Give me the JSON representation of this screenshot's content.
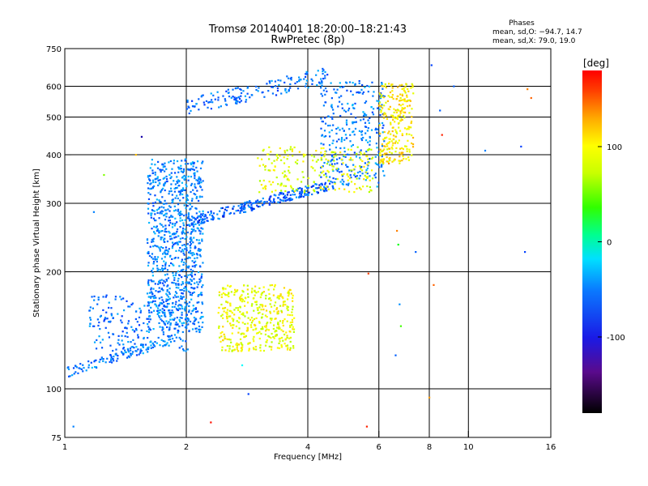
{
  "chart_data": {
    "type": "scatter",
    "title": "Tromsø 20140401 18:20:00–18:21:43",
    "subtitle": "RwPretec (8p)",
    "xlabel": "Frequency [MHz]",
    "ylabel": "Stationary phase Virtual Height [km]",
    "x_scale": "log",
    "y_scale": "log",
    "xlim": [
      1,
      16
    ],
    "ylim": [
      75,
      750
    ],
    "x_ticks": [
      1,
      2,
      4,
      6,
      8,
      10,
      16
    ],
    "y_ticks": [
      75,
      100,
      200,
      300,
      400,
      500,
      600,
      750
    ],
    "x_gridlines": [
      2,
      4,
      6,
      8,
      10
    ],
    "y_gridlines": [
      100,
      200,
      300,
      400,
      500,
      600
    ],
    "grid": true,
    "stats": {
      "header": "Phases",
      "line_o": "mean, sd,O: −94.7, 14.7",
      "line_x": "mean, sd,X:  79.0, 19.0"
    },
    "colorbar": {
      "label": "[deg]",
      "range": [
        -180,
        180
      ],
      "ticks": [
        100,
        0,
        -100
      ],
      "colormap": "rainbow"
    },
    "point_clusters": [
      {
        "name": "o-trace-low",
        "x": [
          1.0,
          1.9
        ],
        "y": [
          110,
          135
        ],
        "phase": -100,
        "n": 120
      },
      {
        "name": "e-layer-o",
        "x": [
          1.15,
          2.05
        ],
        "y": [
          125,
          175
        ],
        "phase": -105,
        "n": 220
      },
      {
        "name": "spread-f-column",
        "x": [
          1.6,
          2.2
        ],
        "y": [
          140,
          390
        ],
        "phase": -100,
        "n": 900
      },
      {
        "name": "f-trace-o",
        "x": [
          2.0,
          4.7
        ],
        "y": [
          268,
          338
        ],
        "phase": -110,
        "n": 260
      },
      {
        "name": "f-trace-high",
        "x": [
          2.0,
          4.5
        ],
        "y": [
          530,
          640
        ],
        "phase": -105,
        "n": 160
      },
      {
        "name": "f-cusp-o",
        "x": [
          4.3,
          6.2
        ],
        "y": [
          330,
          620
        ],
        "phase": -100,
        "n": 320
      },
      {
        "name": "x-trace-low",
        "x": [
          2.4,
          3.7
        ],
        "y": [
          125,
          185
        ],
        "phase": 95,
        "n": 420
      },
      {
        "name": "x-trace-f",
        "x": [
          3.0,
          5.8
        ],
        "y": [
          320,
          420
        ],
        "phase": 90,
        "n": 220
      },
      {
        "name": "x-cusp-high",
        "x": [
          6.0,
          7.3
        ],
        "y": [
          380,
          610
        ],
        "phase": 105,
        "n": 260
      }
    ],
    "scatter_points": [
      {
        "x": 1.05,
        "y": 80,
        "phase": -100
      },
      {
        "x": 1.18,
        "y": 285,
        "phase": -100
      },
      {
        "x": 1.25,
        "y": 355,
        "phase": 60
      },
      {
        "x": 1.38,
        "y": 170,
        "phase": -100
      },
      {
        "x": 1.5,
        "y": 400,
        "phase": 120
      },
      {
        "x": 1.55,
        "y": 445,
        "phase": -150
      },
      {
        "x": 2.75,
        "y": 115,
        "phase": -60
      },
      {
        "x": 2.85,
        "y": 97,
        "phase": -120
      },
      {
        "x": 5.6,
        "y": 80,
        "phase": 170
      },
      {
        "x": 5.65,
        "y": 198,
        "phase": 160
      },
      {
        "x": 6.35,
        "y": 380,
        "phase": 140
      },
      {
        "x": 6.6,
        "y": 122,
        "phase": -110
      },
      {
        "x": 6.65,
        "y": 255,
        "phase": 140
      },
      {
        "x": 6.7,
        "y": 235,
        "phase": 15
      },
      {
        "x": 6.75,
        "y": 165,
        "phase": -95
      },
      {
        "x": 6.8,
        "y": 145,
        "phase": 40
      },
      {
        "x": 7.4,
        "y": 225,
        "phase": -110
      },
      {
        "x": 8.0,
        "y": 95,
        "phase": 130
      },
      {
        "x": 8.1,
        "y": 680,
        "phase": -120
      },
      {
        "x": 8.2,
        "y": 185,
        "phase": 150
      },
      {
        "x": 8.6,
        "y": 450,
        "phase": 170
      },
      {
        "x": 9.2,
        "y": 600,
        "phase": -110
      },
      {
        "x": 11.0,
        "y": 410,
        "phase": -100
      },
      {
        "x": 13.5,
        "y": 420,
        "phase": -120
      },
      {
        "x": 13.8,
        "y": 225,
        "phase": -120
      },
      {
        "x": 14.0,
        "y": 590,
        "phase": 140
      },
      {
        "x": 14.3,
        "y": 560,
        "phase": 150
      },
      {
        "x": 2.3,
        "y": 82,
        "phase": 175
      },
      {
        "x": 5.2,
        "y": 485,
        "phase": -100
      },
      {
        "x": 8.5,
        "y": 520,
        "phase": -110
      }
    ]
  }
}
